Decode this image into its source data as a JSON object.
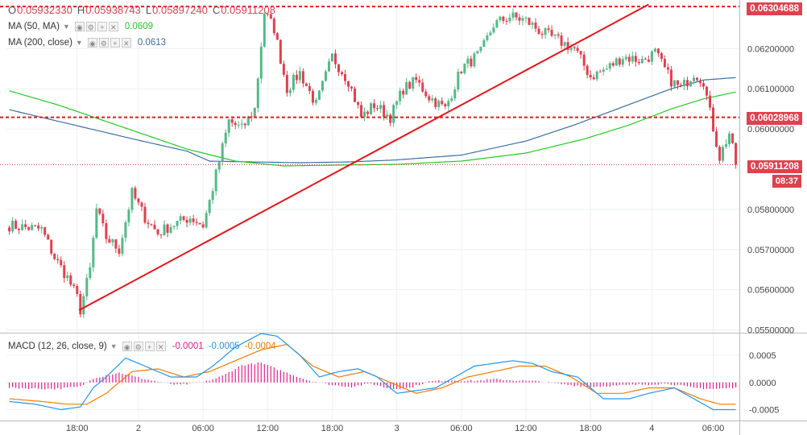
{
  "ohlc": {
    "open_label": "O",
    "open": "0.05932330",
    "high_label": "H",
    "high": "0.05938743",
    "low_label": "L",
    "low": "0.05897240",
    "close_label": "C",
    "close": "0.05911208"
  },
  "indicators": {
    "ma50": {
      "label": "MA (50, MA)",
      "value": "0.0609",
      "color": "#22cc22"
    },
    "ma200": {
      "label": "MA (200, close)",
      "value": "0.0613",
      "color": "#3a6ea5"
    },
    "macd": {
      "label": "MACD (12, 26, close, 9)",
      "hist": "-0.0001",
      "macd": "-0.0005",
      "signal": "-0.0004",
      "hist_color": "#e91e8c",
      "macd_color": "#2196f3",
      "signal_color": "#f57c00"
    }
  },
  "tags": {
    "resistance_high": "0.06304688",
    "resistance_mid": "0.06028968",
    "last_price": "0.05911208",
    "countdown": "08:37"
  },
  "colors": {
    "up": "#53b987",
    "down": "#e0414d",
    "hline": "#e8161a",
    "trend": "#e8161a"
  },
  "chart_data": {
    "type": "line",
    "xlabel": "",
    "ylabel": "",
    "x_tick_labels": [
      "18:00",
      "2",
      "06:00",
      "12:00",
      "18:00",
      "3",
      "06:00",
      "12:00",
      "18:00",
      "4",
      "06:00"
    ],
    "price_axis": {
      "ticks": [
        0.062,
        0.061,
        0.06,
        0.058,
        0.057,
        0.056,
        0.055
      ],
      "tick_labels": [
        "0.06200000",
        "0.06100000",
        "0.06000000",
        "0.05800000",
        "0.05700000",
        "0.05600000",
        "0.05500000"
      ],
      "range": [
        0.05495,
        0.06313
      ]
    },
    "macd_axis": {
      "ticks": [
        0.0005,
        0.0,
        -0.0005
      ],
      "tick_labels": [
        "0.0005",
        "0.0000",
        "-0.0005"
      ],
      "range": [
        -0.0007,
        0.0009
      ]
    },
    "horizontal_lines": [
      0.06304688,
      0.06028968
    ],
    "last_price": 0.05911208,
    "trendline": {
      "from": [
        21.6,
        0.05549
      ],
      "to": [
        198,
        0.0631
      ]
    },
    "price_keypoints": [
      [
        0,
        0.0576
      ],
      [
        10,
        0.0575
      ],
      [
        14,
        0.0568
      ],
      [
        18,
        0.0563
      ],
      [
        21,
        0.0558
      ],
      [
        22,
        0.0555
      ],
      [
        25,
        0.0565
      ],
      [
        27,
        0.058
      ],
      [
        30,
        0.0573
      ],
      [
        34,
        0.057
      ],
      [
        38,
        0.0584
      ],
      [
        42,
        0.0578
      ],
      [
        46,
        0.0574
      ],
      [
        50,
        0.0576
      ],
      [
        56,
        0.0578
      ],
      [
        60,
        0.0576
      ],
      [
        62,
        0.0582
      ],
      [
        65,
        0.0592
      ],
      [
        68,
        0.0602
      ],
      [
        72,
        0.06
      ],
      [
        76,
        0.0605
      ],
      [
        79,
        0.0629
      ],
      [
        82,
        0.0625
      ],
      [
        86,
        0.061
      ],
      [
        90,
        0.0614
      ],
      [
        95,
        0.0606
      ],
      [
        100,
        0.0618
      ],
      [
        105,
        0.0612
      ],
      [
        109,
        0.0603
      ],
      [
        113,
        0.0606
      ],
      [
        118,
        0.0603
      ],
      [
        122,
        0.061
      ],
      [
        126,
        0.0612
      ],
      [
        130,
        0.0608
      ],
      [
        135,
        0.0605
      ],
      [
        140,
        0.0615
      ],
      [
        146,
        0.0619
      ],
      [
        150,
        0.0626
      ],
      [
        155,
        0.0628
      ],
      [
        160,
        0.0627
      ],
      [
        165,
        0.0624
      ],
      [
        170,
        0.0622
      ],
      [
        175,
        0.062
      ],
      [
        180,
        0.0613
      ],
      [
        185,
        0.0615
      ],
      [
        190,
        0.0618
      ],
      [
        196,
        0.0617
      ],
      [
        200,
        0.0619
      ],
      [
        205,
        0.0612
      ],
      [
        208,
        0.061
      ],
      [
        212,
        0.0614
      ],
      [
        215,
        0.0612
      ],
      [
        217,
        0.0604
      ],
      [
        220,
        0.0593
      ],
      [
        223,
        0.0599
      ],
      [
        225,
        0.0591
      ]
    ],
    "ma200_keypoints": [
      [
        0,
        0.06048
      ],
      [
        20,
        0.0601
      ],
      [
        40,
        0.05972
      ],
      [
        55,
        0.05945
      ],
      [
        62,
        0.0592
      ],
      [
        75,
        0.05918
      ],
      [
        90,
        0.05916
      ],
      [
        105,
        0.05918
      ],
      [
        120,
        0.05923
      ],
      [
        140,
        0.05935
      ],
      [
        160,
        0.0597
      ],
      [
        175,
        0.0601
      ],
      [
        190,
        0.06055
      ],
      [
        205,
        0.061
      ],
      [
        215,
        0.06122
      ],
      [
        225,
        0.06128
      ]
    ],
    "ma50_keypoints": [
      [
        0,
        0.06095
      ],
      [
        15,
        0.0606
      ],
      [
        35,
        0.06005
      ],
      [
        55,
        0.0595
      ],
      [
        70,
        0.0592
      ],
      [
        85,
        0.05908
      ],
      [
        100,
        0.0591
      ],
      [
        120,
        0.05912
      ],
      [
        140,
        0.0592
      ],
      [
        160,
        0.0594
      ],
      [
        178,
        0.05975
      ],
      [
        192,
        0.0601
      ],
      [
        205,
        0.0605
      ],
      [
        215,
        0.06075
      ],
      [
        225,
        0.06092
      ]
    ],
    "macd_keypoints": [
      [
        0,
        -0.00035
      ],
      [
        8,
        -0.0004
      ],
      [
        16,
        -0.0005
      ],
      [
        22,
        -0.00045
      ],
      [
        26,
        -0.0001
      ],
      [
        30,
        0.0001
      ],
      [
        36,
        0.00045
      ],
      [
        42,
        0.0003
      ],
      [
        50,
        0.0001
      ],
      [
        58,
        0.0001
      ],
      [
        63,
        0.0003
      ],
      [
        70,
        0.00065
      ],
      [
        78,
        0.0009
      ],
      [
        83,
        0.00085
      ],
      [
        90,
        0.0005
      ],
      [
        96,
        0.0001
      ],
      [
        102,
        0.0002
      ],
      [
        108,
        0.00025
      ],
      [
        114,
        0.0001
      ],
      [
        120,
        -0.0002
      ],
      [
        126,
        -0.00015
      ],
      [
        132,
        -0.0001
      ],
      [
        138,
        0.0001
      ],
      [
        144,
        0.0003
      ],
      [
        150,
        0.00035
      ],
      [
        156,
        0.0004
      ],
      [
        162,
        0.00035
      ],
      [
        168,
        0.0002
      ],
      [
        176,
        0.0001
      ],
      [
        184,
        -0.0003
      ],
      [
        192,
        -0.0003
      ],
      [
        198,
        -0.0002
      ],
      [
        206,
        -0.0001
      ],
      [
        212,
        -0.0003
      ],
      [
        218,
        -0.0005
      ],
      [
        225,
        -0.0005
      ]
    ],
    "signal_keypoints": [
      [
        0,
        -0.0003
      ],
      [
        10,
        -0.00035
      ],
      [
        18,
        -0.0004
      ],
      [
        24,
        -0.0004
      ],
      [
        30,
        -0.0002
      ],
      [
        38,
        0.0002
      ],
      [
        46,
        0.00025
      ],
      [
        54,
        0.0001
      ],
      [
        62,
        0.0002
      ],
      [
        70,
        0.0004
      ],
      [
        78,
        0.0006
      ],
      [
        86,
        0.0007
      ],
      [
        94,
        0.0003
      ],
      [
        102,
        0.0001
      ],
      [
        110,
        0.0002
      ],
      [
        118,
        0.0
      ],
      [
        126,
        -0.0002
      ],
      [
        134,
        -0.0001
      ],
      [
        142,
        0.0001
      ],
      [
        150,
        0.0002
      ],
      [
        158,
        0.0003
      ],
      [
        166,
        0.0003
      ],
      [
        174,
        0.0001
      ],
      [
        182,
        -0.0002
      ],
      [
        190,
        -0.0002
      ],
      [
        198,
        -0.0001
      ],
      [
        206,
        -0.0001
      ],
      [
        214,
        -0.0003
      ],
      [
        220,
        -0.0004
      ],
      [
        225,
        -0.0004
      ]
    ],
    "hist_keypoints": [
      [
        0,
        -0.0001
      ],
      [
        14,
        -0.00012
      ],
      [
        22,
        -8e-05
      ],
      [
        26,
        8e-05
      ],
      [
        34,
        0.00018
      ],
      [
        42,
        6e-05
      ],
      [
        52,
        -5e-05
      ],
      [
        60,
        0.0
      ],
      [
        66,
        0.00012
      ],
      [
        72,
        0.00032
      ],
      [
        78,
        0.00036
      ],
      [
        84,
        0.00022
      ],
      [
        92,
        5e-05
      ],
      [
        100,
        -5e-05
      ],
      [
        106,
        -8e-05
      ],
      [
        112,
        -2e-05
      ],
      [
        118,
        -0.00012
      ],
      [
        124,
        -0.0001
      ],
      [
        130,
        2e-05
      ],
      [
        136,
        4e-05
      ],
      [
        144,
        3e-05
      ],
      [
        150,
        6e-05
      ],
      [
        156,
        4e-05
      ],
      [
        164,
        2e-05
      ],
      [
        172,
        -4e-05
      ],
      [
        180,
        -8e-05
      ],
      [
        188,
        -6e-05
      ],
      [
        196,
        -4e-05
      ],
      [
        204,
        -2e-05
      ],
      [
        212,
        -0.0001
      ],
      [
        218,
        -0.00012
      ],
      [
        225,
        -0.0001
      ]
    ]
  }
}
